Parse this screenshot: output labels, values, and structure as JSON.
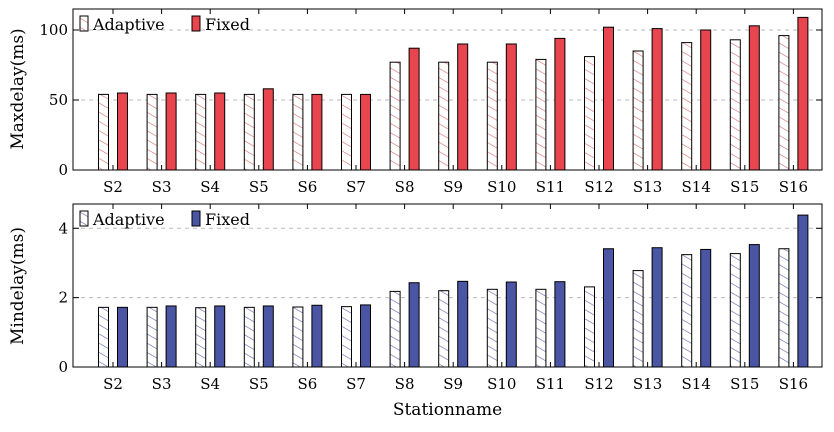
{
  "colors": {
    "adaptive_fill": "#ffffff",
    "adaptive_hatch": "#d96a6a",
    "adaptive_hatch_bottom": "#5a66a8",
    "fixed_top": "#e8454f",
    "fixed_bottom": "#4a55a4",
    "stroke": "#000000",
    "grid": "#bbbbbb"
  },
  "chart_data": [
    {
      "type": "bar",
      "categories": [
        "S2",
        "S3",
        "S4",
        "S5",
        "S6",
        "S7",
        "S8",
        "S9",
        "S10",
        "S11",
        "S12",
        "S13",
        "S14",
        "S15",
        "S16"
      ],
      "series": [
        {
          "name": "Adaptive",
          "values": [
            54,
            54,
            54,
            54,
            54,
            54,
            77,
            77,
            77,
            79,
            81,
            85,
            91,
            93,
            96
          ]
        },
        {
          "name": "Fixed",
          "values": [
            55,
            55,
            55,
            58,
            54,
            54,
            87,
            90,
            90,
            94,
            102,
            101,
            100,
            103,
            109
          ]
        }
      ],
      "xlabel": "",
      "ylabel": "Maxdelay(ms)",
      "ylim": [
        0,
        115
      ],
      "yticks": [
        0,
        50,
        100
      ],
      "grid": "horizontal dashed",
      "legend_position": "top-left"
    },
    {
      "type": "bar",
      "categories": [
        "S2",
        "S3",
        "S4",
        "S5",
        "S6",
        "S7",
        "S8",
        "S9",
        "S10",
        "S11",
        "S12",
        "S13",
        "S14",
        "S15",
        "S16"
      ],
      "series": [
        {
          "name": "Adaptive",
          "values": [
            1.72,
            1.72,
            1.71,
            1.72,
            1.73,
            1.74,
            2.18,
            2.2,
            2.24,
            2.24,
            2.31,
            2.78,
            3.24,
            3.27,
            3.41
          ]
        },
        {
          "name": "Fixed",
          "values": [
            1.72,
            1.76,
            1.76,
            1.76,
            1.78,
            1.79,
            2.43,
            2.47,
            2.45,
            2.46,
            3.41,
            3.44,
            3.39,
            3.53,
            4.38
          ]
        }
      ],
      "xlabel": "Stationname",
      "ylabel": "Mindelay(ms)",
      "ylim": [
        0,
        4.7
      ],
      "yticks": [
        0,
        2,
        4
      ],
      "grid": "horizontal dashed",
      "legend_position": "top-left"
    }
  ]
}
